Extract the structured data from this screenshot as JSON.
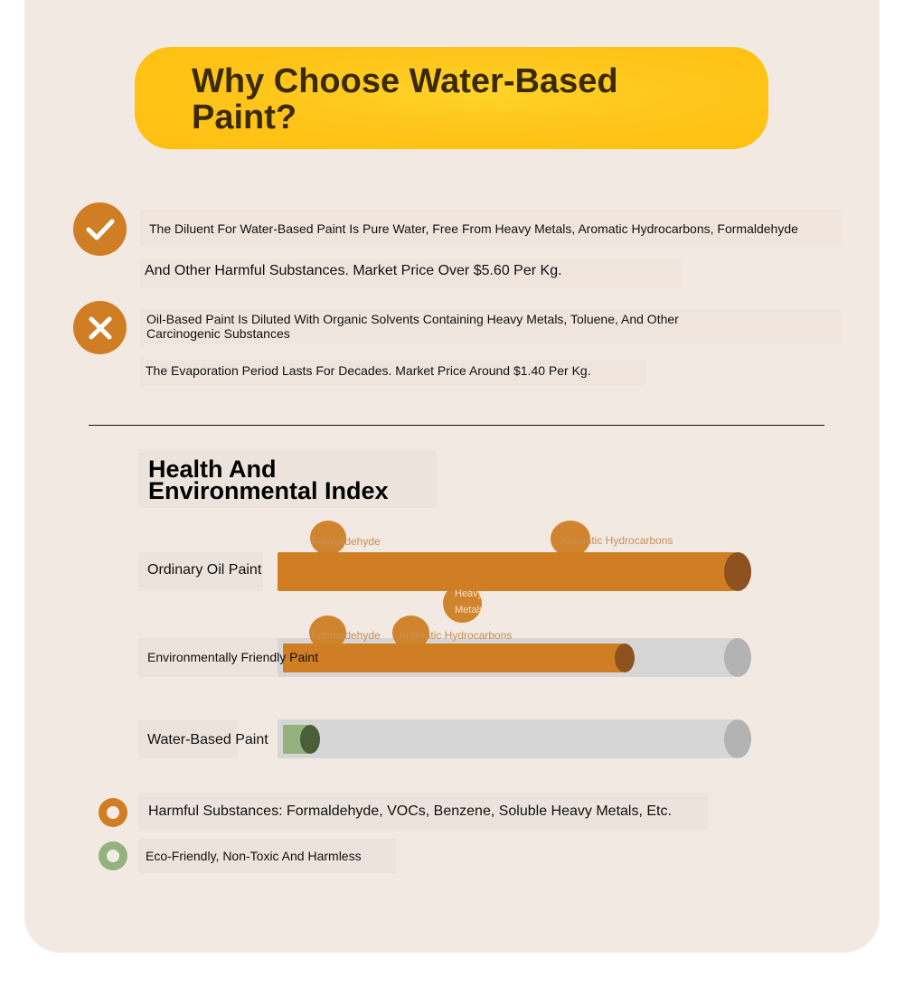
{
  "header": {
    "title": "Why Choose Water-Based Paint?"
  },
  "comparison": {
    "water_based": {
      "icon": "check-icon",
      "line1": "The Diluent For Water-Based Paint Is Pure Water, Free From Heavy Metals, Aromatic Hydrocarbons, Formaldehyde",
      "line2": "And Other Harmful Substances. Market Price Over $5.60 Per Kg."
    },
    "oil_based": {
      "icon": "x-icon",
      "line1": "Oil-Based Paint Is Diluted With Organic Solvents Containing Heavy Metals, Toluene, And Other Carcinogenic Substances",
      "line2": "The Evaporation Period Lasts For Decades. Market Price Around $1.40 Per Kg."
    }
  },
  "index": {
    "title": "Health And Environmental Index",
    "bars": [
      {
        "label": "Ordinary Oil Paint",
        "level": 1.0,
        "color": "#cf7e24",
        "cap_color": "#8e521f",
        "markers": [
          "Formaldehyde",
          "Aromatic Hydrocarbons",
          "Heavy Metals"
        ]
      },
      {
        "label": "Environmentally Friendly Paint",
        "level": 0.75,
        "color": "#cf7e24",
        "cap_color": "#8e521f",
        "markers": [
          "Formaldehyde",
          "Aromatic Hydrocarbons"
        ]
      },
      {
        "label": "Water-Based Paint",
        "level": 0.08,
        "color": "#93b27e",
        "cap_color": "#4a5e3a",
        "markers": []
      }
    ]
  },
  "legend": [
    {
      "text": "Harmful Substances: Formaldehyde, VOCs, Benzene, Soluble Heavy Metals, Etc.",
      "color": "#cf7e24"
    },
    {
      "text": "Eco-Friendly, Non-Toxic And Harmless",
      "color": "#93b27e"
    }
  ],
  "colors": {
    "accent": "#ffc51a",
    "harmful": "#cf7e24",
    "eco": "#93b27e",
    "background": "#f2e9e2"
  }
}
